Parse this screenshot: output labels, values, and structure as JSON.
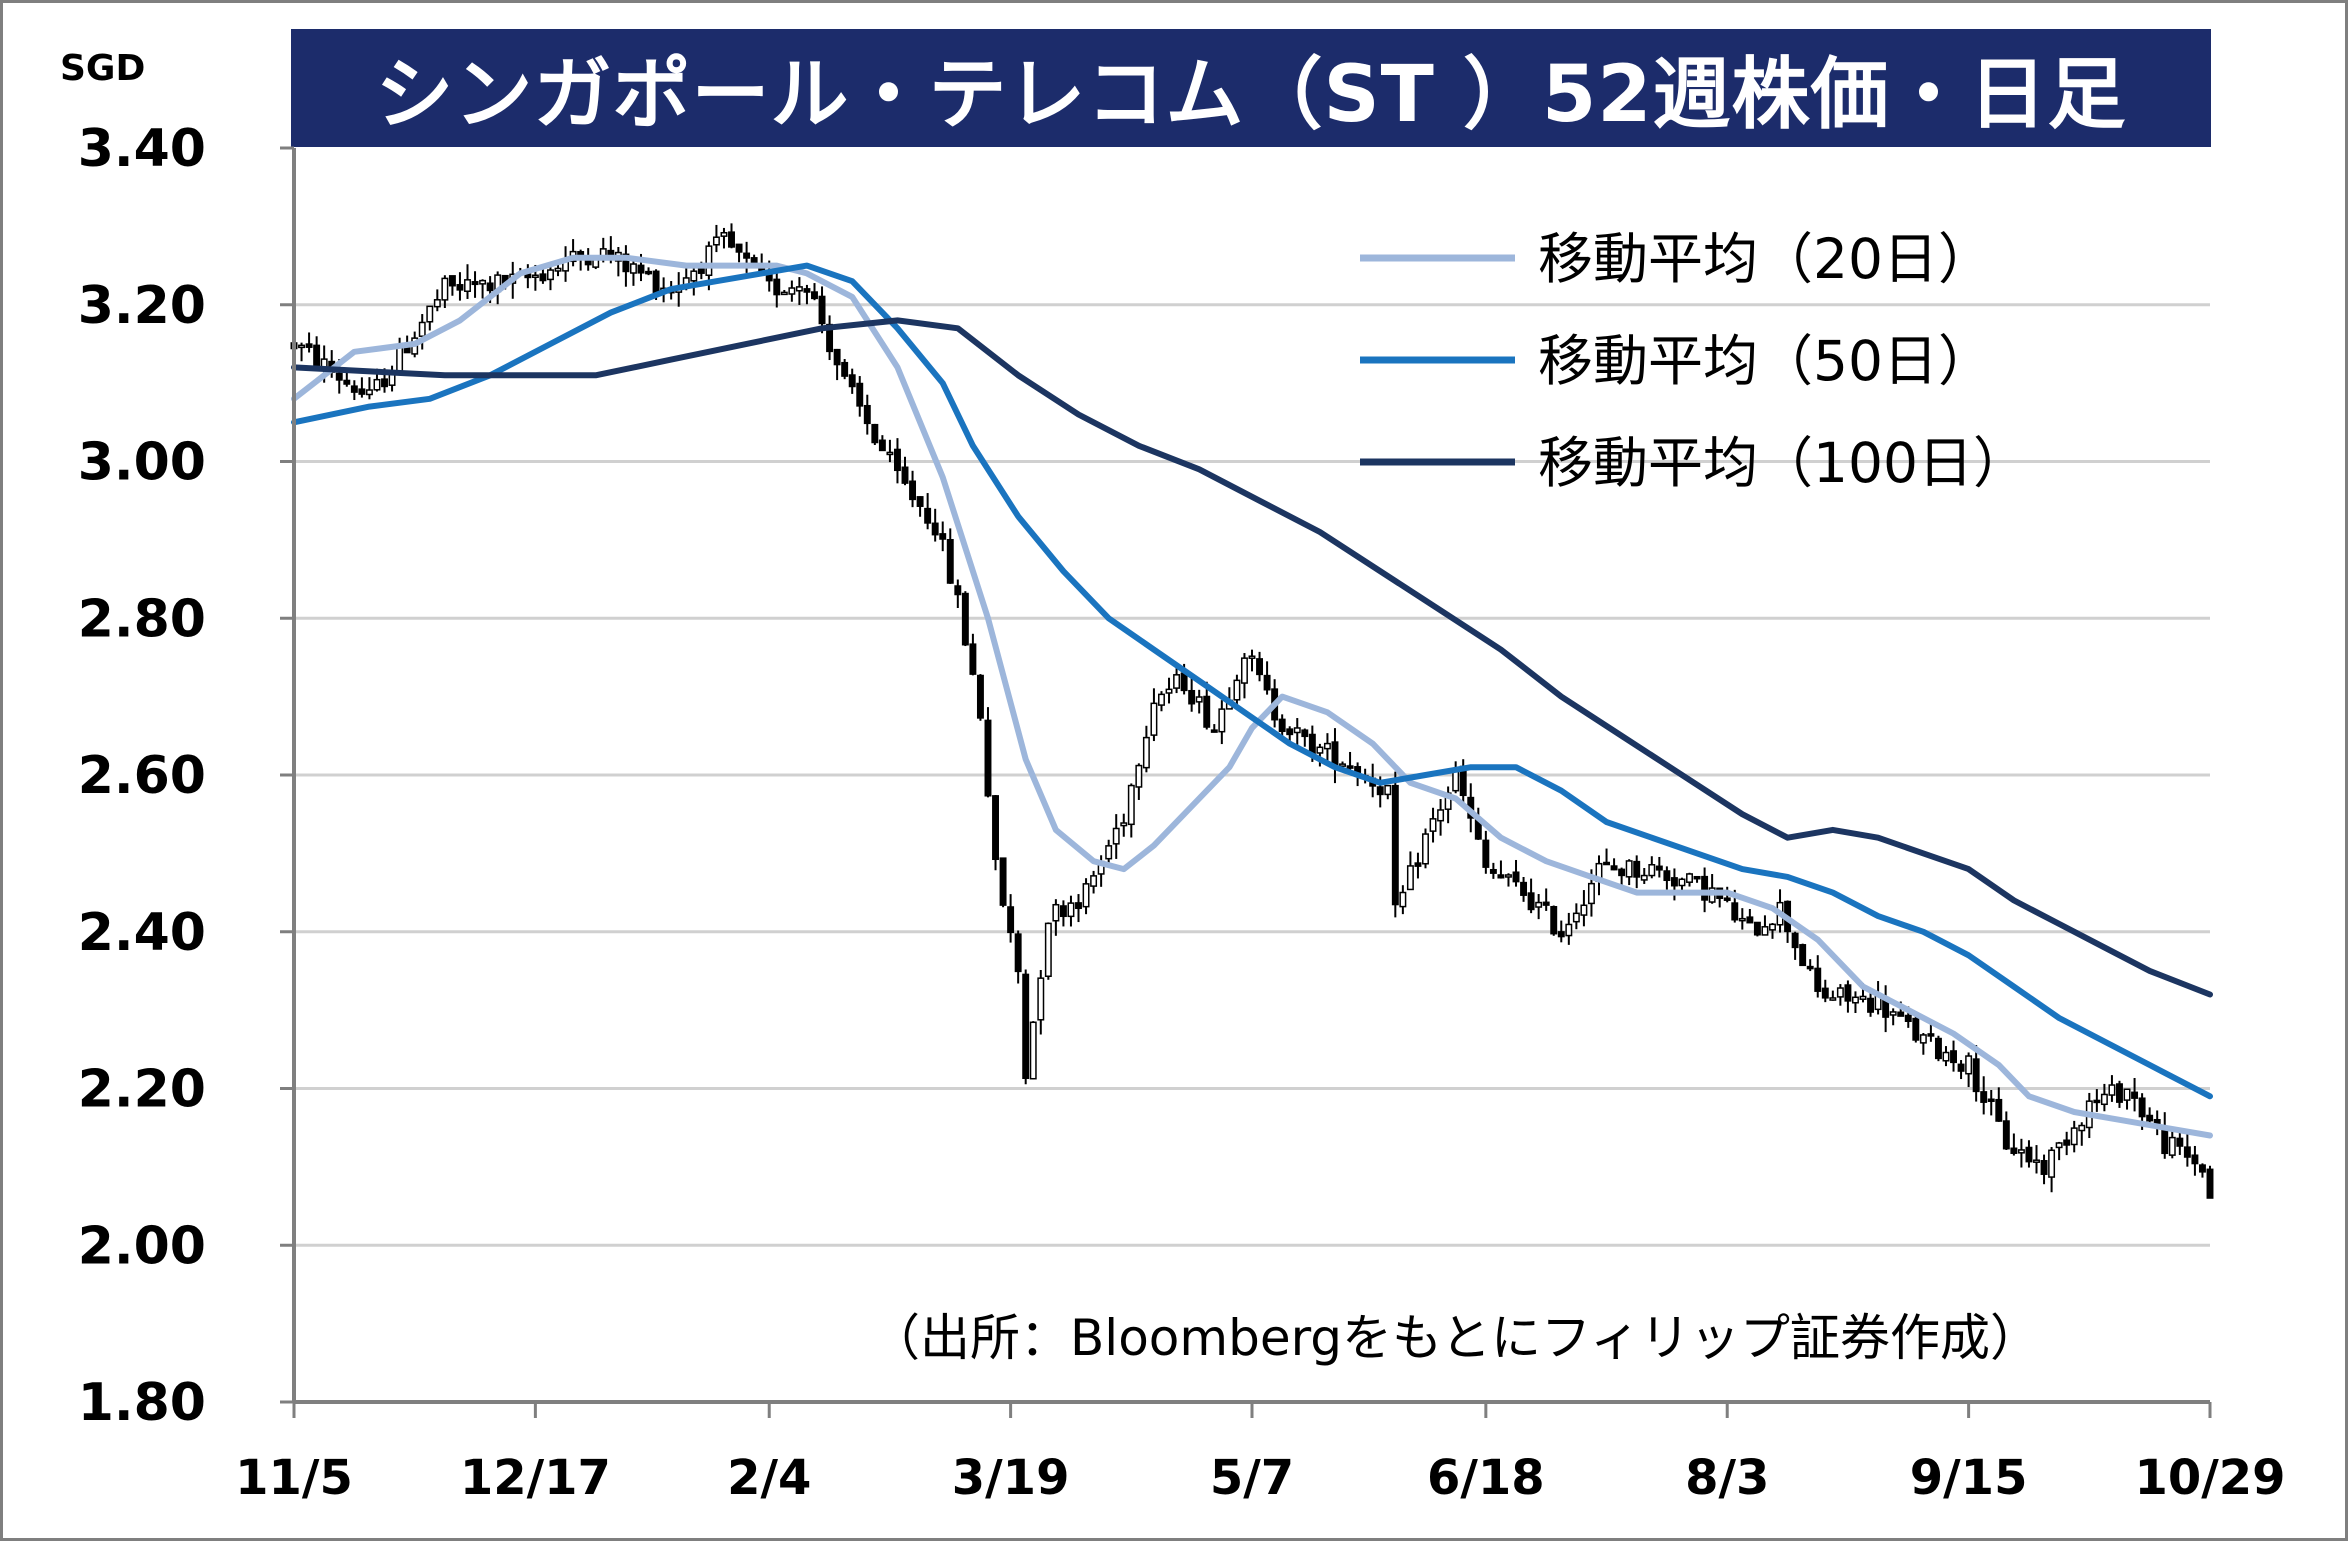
{
  "title": "シンガポール・テレコム（ST ）52週株価・日足",
  "unit": "SGD",
  "source": "（出所：Bloombergをもとにフィリップ証券作成）",
  "colors": {
    "title_bg": "#1c2c6b",
    "ma20": "#9db6db",
    "ma50": "#1a74bf",
    "ma100": "#1c3561",
    "candle": "#000000",
    "grid": "#d0d0d0"
  },
  "chart_data": {
    "type": "candlestick",
    "title": "シンガポール・テレコム（ST ）52週株価・日足",
    "ylabel": "SGD",
    "ylim": [
      1.8,
      3.4
    ],
    "yticks": [
      "3.40",
      "3.20",
      "3.00",
      "2.80",
      "2.60",
      "2.40",
      "2.20",
      "2.00",
      "1.80"
    ],
    "x_index_range": [
      0,
      254
    ],
    "xticks": [
      {
        "label": "11/5",
        "index": 0
      },
      {
        "label": "12/17",
        "index": 32
      },
      {
        "label": "2/4",
        "index": 63
      },
      {
        "label": "3/19",
        "index": 95
      },
      {
        "label": "5/7",
        "index": 127
      },
      {
        "label": "6/18",
        "index": 158
      },
      {
        "label": "8/3",
        "index": 190
      },
      {
        "label": "9/15",
        "index": 222
      },
      {
        "label": "10/29",
        "index": 254
      }
    ],
    "price_path": [
      [
        0,
        3.15
      ],
      [
        10,
        3.08
      ],
      [
        20,
        3.22
      ],
      [
        30,
        3.23
      ],
      [
        40,
        3.27
      ],
      [
        50,
        3.22
      ],
      [
        57,
        3.28
      ],
      [
        63,
        3.22
      ],
      [
        68,
        3.23
      ],
      [
        73,
        3.1
      ],
      [
        80,
        2.98
      ],
      [
        85,
        2.92
      ],
      [
        88,
        2.82
      ],
      [
        91,
        2.68
      ],
      [
        93,
        2.48
      ],
      [
        96,
        2.35
      ],
      [
        97,
        2.22
      ],
      [
        100,
        2.42
      ],
      [
        105,
        2.45
      ],
      [
        110,
        2.55
      ],
      [
        114,
        2.7
      ],
      [
        118,
        2.72
      ],
      [
        122,
        2.66
      ],
      [
        126,
        2.76
      ],
      [
        130,
        2.68
      ],
      [
        134,
        2.64
      ],
      [
        139,
        2.62
      ],
      [
        145,
        2.58
      ],
      [
        146,
        2.42
      ],
      [
        150,
        2.52
      ],
      [
        154,
        2.6
      ],
      [
        158,
        2.48
      ],
      [
        163,
        2.45
      ],
      [
        168,
        2.4
      ],
      [
        173,
        2.48
      ],
      [
        180,
        2.48
      ],
      [
        188,
        2.45
      ],
      [
        193,
        2.4
      ],
      [
        197,
        2.43
      ],
      [
        202,
        2.32
      ],
      [
        210,
        2.31
      ],
      [
        216,
        2.26
      ],
      [
        222,
        2.23
      ],
      [
        227,
        2.13
      ],
      [
        232,
        2.1
      ],
      [
        238,
        2.18
      ],
      [
        243,
        2.2
      ],
      [
        248,
        2.13
      ],
      [
        253,
        2.1
      ],
      [
        254,
        2.06
      ]
    ],
    "series": [
      {
        "name": "移動平均（20日）",
        "color": "#9db6db",
        "points": [
          [
            0,
            3.08
          ],
          [
            8,
            3.14
          ],
          [
            16,
            3.15
          ],
          [
            22,
            3.18
          ],
          [
            30,
            3.24
          ],
          [
            37,
            3.26
          ],
          [
            44,
            3.26
          ],
          [
            52,
            3.25
          ],
          [
            58,
            3.25
          ],
          [
            64,
            3.25
          ],
          [
            68,
            3.24
          ],
          [
            74,
            3.21
          ],
          [
            80,
            3.12
          ],
          [
            86,
            2.98
          ],
          [
            92,
            2.8
          ],
          [
            97,
            2.62
          ],
          [
            101,
            2.53
          ],
          [
            106,
            2.49
          ],
          [
            110,
            2.48
          ],
          [
            114,
            2.51
          ],
          [
            119,
            2.56
          ],
          [
            124,
            2.61
          ],
          [
            127,
            2.66
          ],
          [
            131,
            2.7
          ],
          [
            137,
            2.68
          ],
          [
            143,
            2.64
          ],
          [
            148,
            2.59
          ],
          [
            154,
            2.57
          ],
          [
            160,
            2.52
          ],
          [
            166,
            2.49
          ],
          [
            172,
            2.47
          ],
          [
            178,
            2.45
          ],
          [
            184,
            2.45
          ],
          [
            190,
            2.45
          ],
          [
            196,
            2.43
          ],
          [
            202,
            2.39
          ],
          [
            208,
            2.33
          ],
          [
            214,
            2.3
          ],
          [
            220,
            2.27
          ],
          [
            226,
            2.23
          ],
          [
            230,
            2.19
          ],
          [
            236,
            2.17
          ],
          [
            242,
            2.16
          ],
          [
            248,
            2.15
          ],
          [
            254,
            2.14
          ]
        ]
      },
      {
        "name": "移動平均（50日）",
        "color": "#1a74bf",
        "points": [
          [
            0,
            3.05
          ],
          [
            10,
            3.07
          ],
          [
            18,
            3.08
          ],
          [
            26,
            3.11
          ],
          [
            34,
            3.15
          ],
          [
            42,
            3.19
          ],
          [
            50,
            3.22
          ],
          [
            56,
            3.23
          ],
          [
            62,
            3.24
          ],
          [
            68,
            3.25
          ],
          [
            74,
            3.23
          ],
          [
            80,
            3.17
          ],
          [
            86,
            3.1
          ],
          [
            90,
            3.02
          ],
          [
            96,
            2.93
          ],
          [
            102,
            2.86
          ],
          [
            108,
            2.8
          ],
          [
            114,
            2.76
          ],
          [
            120,
            2.72
          ],
          [
            126,
            2.68
          ],
          [
            132,
            2.64
          ],
          [
            138,
            2.61
          ],
          [
            144,
            2.59
          ],
          [
            150,
            2.6
          ],
          [
            156,
            2.61
          ],
          [
            162,
            2.61
          ],
          [
            168,
            2.58
          ],
          [
            174,
            2.54
          ],
          [
            180,
            2.52
          ],
          [
            186,
            2.5
          ],
          [
            192,
            2.48
          ],
          [
            198,
            2.47
          ],
          [
            204,
            2.45
          ],
          [
            210,
            2.42
          ],
          [
            216,
            2.4
          ],
          [
            222,
            2.37
          ],
          [
            228,
            2.33
          ],
          [
            234,
            2.29
          ],
          [
            240,
            2.26
          ],
          [
            246,
            2.23
          ],
          [
            254,
            2.19
          ]
        ]
      },
      {
        "name": "移動平均（100日）",
        "color": "#1c3561",
        "points": [
          [
            0,
            3.12
          ],
          [
            20,
            3.11
          ],
          [
            40,
            3.11
          ],
          [
            50,
            3.13
          ],
          [
            60,
            3.15
          ],
          [
            70,
            3.17
          ],
          [
            80,
            3.18
          ],
          [
            88,
            3.17
          ],
          [
            96,
            3.11
          ],
          [
            104,
            3.06
          ],
          [
            112,
            3.02
          ],
          [
            120,
            2.99
          ],
          [
            128,
            2.95
          ],
          [
            136,
            2.91
          ],
          [
            144,
            2.86
          ],
          [
            152,
            2.81
          ],
          [
            160,
            2.76
          ],
          [
            168,
            2.7
          ],
          [
            176,
            2.65
          ],
          [
            184,
            2.6
          ],
          [
            192,
            2.55
          ],
          [
            198,
            2.52
          ],
          [
            204,
            2.53
          ],
          [
            210,
            2.52
          ],
          [
            216,
            2.5
          ],
          [
            222,
            2.48
          ],
          [
            228,
            2.44
          ],
          [
            234,
            2.41
          ],
          [
            240,
            2.38
          ],
          [
            246,
            2.35
          ],
          [
            254,
            2.32
          ]
        ]
      }
    ],
    "legend": {
      "position": "top-right"
    },
    "grid": true
  }
}
